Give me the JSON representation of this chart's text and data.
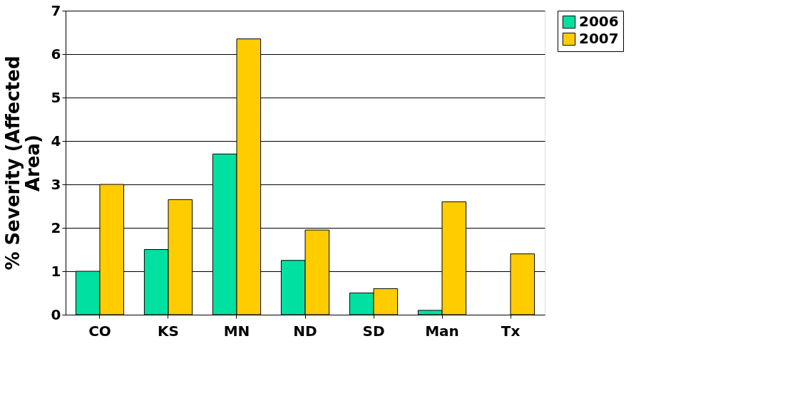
{
  "chart_data": {
    "type": "bar",
    "ylabel": "% Severity (Affected Area)",
    "categories": [
      "CO",
      "KS",
      "MN",
      "ND",
      "SD",
      "Man",
      "Tx"
    ],
    "series": [
      {
        "name": "2006",
        "color": "#00e0a0",
        "values": [
          1.0,
          1.5,
          3.7,
          1.25,
          0.5,
          0.1,
          null
        ]
      },
      {
        "name": "2007",
        "color": "#ffcc00",
        "values": [
          3.0,
          2.65,
          6.35,
          1.95,
          0.6,
          2.6,
          1.4
        ]
      }
    ],
    "ylim": [
      0,
      7
    ],
    "yticks": [
      0,
      1,
      2,
      3,
      4,
      5,
      6,
      7
    ],
    "grid": "y",
    "legend": "right"
  }
}
